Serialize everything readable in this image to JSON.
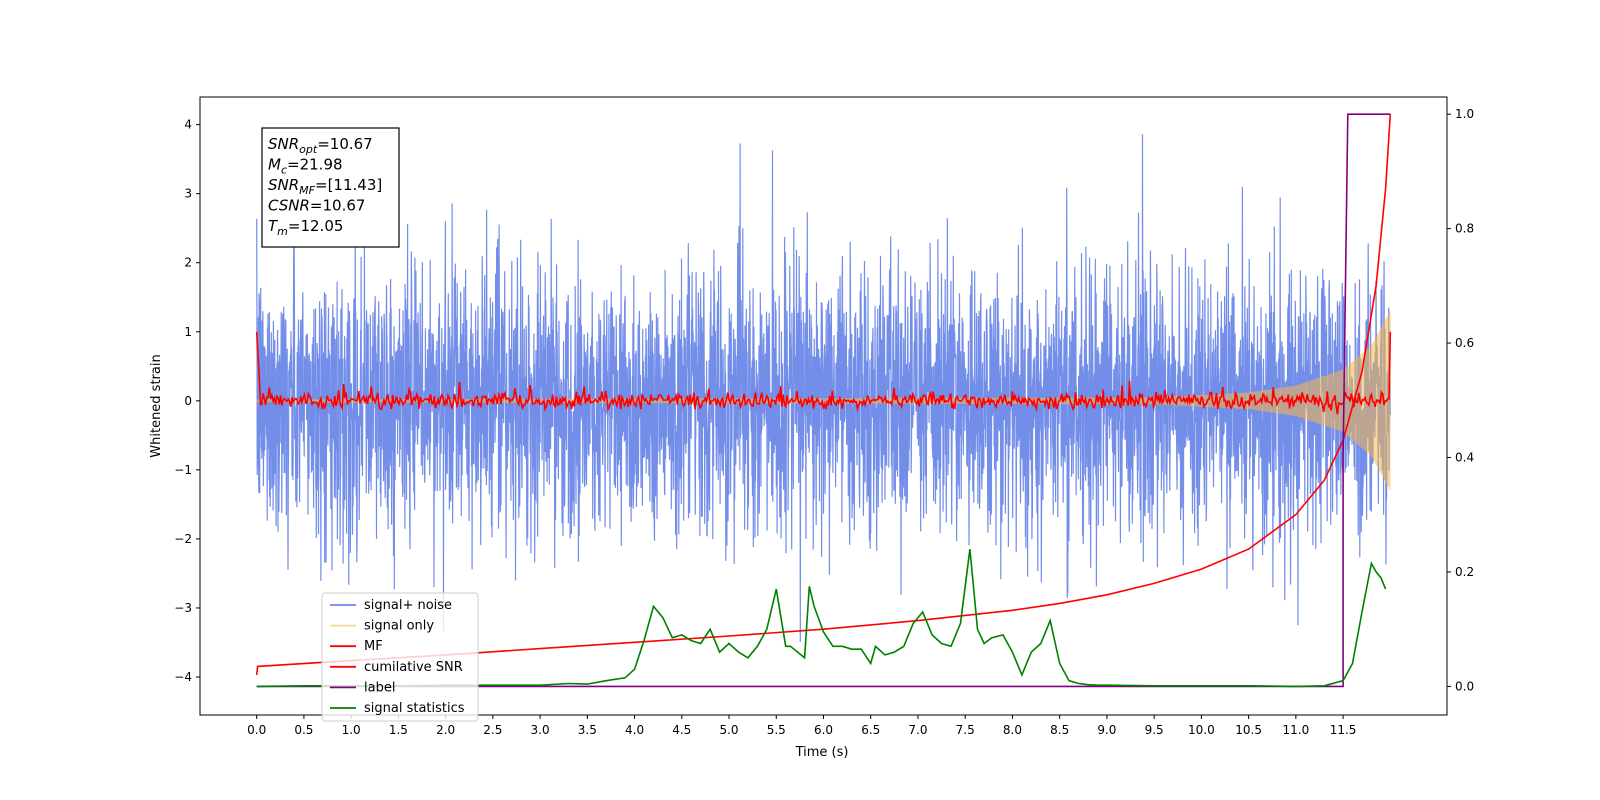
{
  "chart_data": {
    "type": "line",
    "xlabel": "Time (s)",
    "ylabel": "Whitened strain",
    "xlim": [
      -0.6,
      12.6
    ],
    "ylim": [
      -4.55,
      4.4
    ],
    "y2lim": [
      -0.05,
      1.03
    ],
    "x_ticks": [
      0.0,
      0.5,
      1.0,
      1.5,
      2.0,
      2.5,
      3.0,
      3.5,
      4.0,
      4.5,
      5.0,
      5.5,
      6.0,
      6.5,
      7.0,
      7.5,
      8.0,
      8.5,
      9.0,
      9.5,
      10.0,
      10.5,
      11.0,
      11.5
    ],
    "x_tick_labels": [
      "0.0",
      "0.5",
      "1.0",
      "1.5",
      "2.0",
      "2.5",
      "3.0",
      "3.5",
      "4.0",
      "4.5",
      "5.0",
      "5.5",
      "6.0",
      "6.5",
      "7.0",
      "7.5",
      "8.0",
      "8.5",
      "9.0",
      "9.5",
      "10.0",
      "10.5",
      "11.0",
      "11.5"
    ],
    "y_ticks": [
      -4,
      -3,
      -2,
      -1,
      0,
      1,
      2,
      3,
      4
    ],
    "y_tick_labels": [
      "−4",
      "−3",
      "−2",
      "−1",
      "0",
      "1",
      "2",
      "3",
      "4"
    ],
    "y2_ticks": [
      0.0,
      0.2,
      0.4,
      0.6,
      0.8,
      1.0
    ],
    "y2_tick_labels": [
      "0.0",
      "0.2",
      "0.4",
      "0.6",
      "0.8",
      "1.0"
    ],
    "grid": false,
    "legend_placement": "lower-left",
    "annotation": {
      "lines": [
        {
          "base": "SNR",
          "sub": "opt",
          "rest": "=10.67"
        },
        {
          "base": "M",
          "sub": "c",
          "rest": "=21.98"
        },
        {
          "base": "SNR",
          "sub": "MF",
          "rest": "=[11.43]"
        },
        {
          "base": "CSNR",
          "sub": "",
          "rest": "=10.67"
        },
        {
          "base": "T",
          "sub": "m",
          "rest": "=12.05"
        }
      ]
    },
    "series": [
      {
        "name": "signal+ noise",
        "color": "#6b88e8",
        "axis": "left",
        "kind": "noise",
        "t_start": 0.0,
        "t_end": 12.0,
        "typical_range": [
          -2.0,
          2.2
        ],
        "extreme_range": [
          -4.1,
          4.0
        ]
      },
      {
        "name": "signal only",
        "color": "#f5b84a",
        "axis": "left",
        "kind": "chirp",
        "t_start": 0.0,
        "t_end": 12.0,
        "envelope": {
          "t": [
            0.0,
            9.5,
            10.5,
            11.0,
            11.5,
            11.8,
            12.0
          ],
          "amp": [
            0.02,
            0.05,
            0.12,
            0.22,
            0.45,
            0.8,
            1.3
          ]
        }
      },
      {
        "name": "MF",
        "color": "#ff0000",
        "axis": "left",
        "kind": "matched-filter",
        "t_start": 0.0,
        "t_end": 12.0,
        "start_value": 1.0,
        "typical_range": [
          -0.12,
          0.3
        ],
        "end_value": 1.0
      },
      {
        "name": "cumilative SNR",
        "color": "#ff0000",
        "axis": "right",
        "x": [
          0.0,
          0.01,
          1.0,
          2.0,
          3.0,
          4.0,
          5.0,
          6.0,
          7.0,
          8.0,
          8.5,
          9.0,
          9.5,
          10.0,
          10.5,
          11.0,
          11.3,
          11.5,
          11.7,
          11.85,
          11.95,
          12.0
        ],
        "y": [
          0.02,
          0.035,
          0.045,
          0.055,
          0.066,
          0.077,
          0.088,
          0.1,
          0.115,
          0.133,
          0.145,
          0.16,
          0.18,
          0.205,
          0.24,
          0.3,
          0.36,
          0.43,
          0.55,
          0.7,
          0.87,
          1.0
        ]
      },
      {
        "name": "label",
        "color": "#800080",
        "axis": "right",
        "x": [
          0.0,
          11.5,
          11.5,
          11.55,
          12.0
        ],
        "y": [
          0.0,
          0.0,
          0.4,
          1.0,
          1.0
        ]
      },
      {
        "name": "signal statistics",
        "color": "#008000",
        "axis": "right",
        "x": [
          0.0,
          0.5,
          1.0,
          1.5,
          2.0,
          2.5,
          3.0,
          3.3,
          3.5,
          3.7,
          3.9,
          4.0,
          4.1,
          4.2,
          4.3,
          4.4,
          4.5,
          4.6,
          4.7,
          4.8,
          4.9,
          5.0,
          5.1,
          5.2,
          5.3,
          5.4,
          5.5,
          5.6,
          5.65,
          5.8,
          5.85,
          5.9,
          6.0,
          6.1,
          6.2,
          6.3,
          6.4,
          6.5,
          6.55,
          6.65,
          6.75,
          6.85,
          6.95,
          7.05,
          7.15,
          7.25,
          7.35,
          7.45,
          7.55,
          7.63,
          7.7,
          7.78,
          7.9,
          8.0,
          8.1,
          8.2,
          8.3,
          8.4,
          8.5,
          8.6,
          8.7,
          8.8,
          8.9,
          9.0,
          9.5,
          10.0,
          10.5,
          11.0,
          11.3,
          11.5,
          11.6,
          11.7,
          11.8,
          11.85,
          11.9,
          11.95
        ],
        "y": [
          0.0,
          0.001,
          0.001,
          0.001,
          0.002,
          0.002,
          0.002,
          0.005,
          0.004,
          0.01,
          0.015,
          0.03,
          0.08,
          0.14,
          0.12,
          0.085,
          0.09,
          0.08,
          0.075,
          0.1,
          0.06,
          0.075,
          0.06,
          0.05,
          0.07,
          0.1,
          0.17,
          0.07,
          0.07,
          0.05,
          0.175,
          0.14,
          0.095,
          0.07,
          0.07,
          0.065,
          0.065,
          0.04,
          0.07,
          0.055,
          0.06,
          0.07,
          0.11,
          0.13,
          0.09,
          0.075,
          0.07,
          0.11,
          0.24,
          0.1,
          0.075,
          0.085,
          0.09,
          0.06,
          0.02,
          0.06,
          0.075,
          0.115,
          0.04,
          0.01,
          0.005,
          0.003,
          0.002,
          0.002,
          0.001,
          0.001,
          0.001,
          0.0,
          0.001,
          0.01,
          0.04,
          0.13,
          0.215,
          0.2,
          0.19,
          0.17
        ]
      }
    ]
  }
}
